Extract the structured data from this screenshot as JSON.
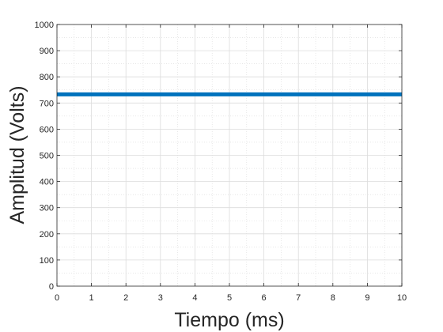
{
  "chart_data": {
    "type": "line",
    "xlabel": "Tiempo (ms)",
    "ylabel": "Amplitud (Volts)",
    "xlim": [
      0,
      10
    ],
    "ylim": [
      0,
      1000
    ],
    "xticks": [
      0,
      1,
      2,
      3,
      4,
      5,
      6,
      7,
      8,
      9,
      10
    ],
    "yticks": [
      0,
      100,
      200,
      300,
      400,
      500,
      600,
      700,
      800,
      900,
      1000
    ],
    "grid": true,
    "minor_grid": true,
    "series": [
      {
        "color": "#0072BD",
        "x": [
          0,
          1,
          2,
          3,
          4,
          5,
          6,
          7,
          8,
          9,
          10
        ],
        "y": [
          733,
          733,
          733,
          733,
          733,
          733,
          733,
          733,
          733,
          733,
          733
        ]
      }
    ]
  }
}
